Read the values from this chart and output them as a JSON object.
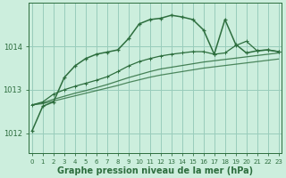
{
  "background_color": "#cceedd",
  "grid_color": "#99ccbb",
  "line_color": "#2d6e3e",
  "xlabel": "Graphe pression niveau de la mer (hPa)",
  "xlabel_fontsize": 7,
  "yticks": [
    1012,
    1013,
    1014
  ],
  "xticks": [
    0,
    1,
    2,
    3,
    4,
    5,
    6,
    7,
    8,
    9,
    10,
    11,
    12,
    13,
    14,
    15,
    16,
    17,
    18,
    19,
    20,
    21,
    22,
    23
  ],
  "ylim": [
    1011.55,
    1015.0
  ],
  "xlim": [
    -0.3,
    23.3
  ],
  "s1_x": [
    0,
    1,
    2,
    3,
    4,
    5,
    6,
    7,
    8,
    9,
    10,
    11,
    12,
    13,
    14,
    15,
    16,
    17,
    18,
    19,
    20,
    21,
    22,
    23
  ],
  "s1_y": [
    1012.05,
    1012.62,
    1012.72,
    1013.28,
    1013.55,
    1013.72,
    1013.82,
    1013.87,
    1013.92,
    1014.18,
    1014.52,
    1014.62,
    1014.65,
    1014.72,
    1014.68,
    1014.62,
    1014.38,
    1013.82,
    1014.62,
    1014.05,
    1013.85,
    1013.9,
    1013.92,
    1013.88
  ],
  "s2_x": [
    0,
    1,
    2,
    3,
    4,
    5,
    6,
    7,
    8,
    9,
    10,
    11,
    12,
    13,
    14,
    15,
    16,
    17,
    18,
    19,
    20,
    21,
    22,
    23
  ],
  "s2_y": [
    1012.65,
    1012.72,
    1012.9,
    1013.0,
    1013.08,
    1013.15,
    1013.22,
    1013.3,
    1013.42,
    1013.55,
    1013.65,
    1013.72,
    1013.78,
    1013.82,
    1013.85,
    1013.88,
    1013.88,
    1013.82,
    1013.85,
    1014.02,
    1014.12,
    1013.9,
    1013.92,
    1013.88
  ],
  "s3_x": [
    0,
    1,
    2,
    3,
    4,
    5,
    6,
    7,
    8,
    9,
    10,
    11,
    12,
    13,
    14,
    15,
    16,
    17,
    18,
    19,
    20,
    21,
    22,
    23
  ],
  "s3_y": [
    1012.65,
    1012.7,
    1012.78,
    1012.85,
    1012.92,
    1012.98,
    1013.05,
    1013.12,
    1013.2,
    1013.28,
    1013.35,
    1013.42,
    1013.48,
    1013.52,
    1013.56,
    1013.6,
    1013.64,
    1013.67,
    1013.7,
    1013.73,
    1013.76,
    1013.79,
    1013.82,
    1013.85
  ],
  "s4_x": [
    0,
    1,
    2,
    3,
    4,
    5,
    6,
    7,
    8,
    9,
    10,
    11,
    12,
    13,
    14,
    15,
    16,
    17,
    18,
    19,
    20,
    21,
    22,
    23
  ],
  "s4_y": [
    1012.65,
    1012.68,
    1012.74,
    1012.8,
    1012.86,
    1012.92,
    1012.98,
    1013.04,
    1013.1,
    1013.17,
    1013.23,
    1013.29,
    1013.34,
    1013.38,
    1013.42,
    1013.46,
    1013.5,
    1013.53,
    1013.56,
    1013.59,
    1013.62,
    1013.65,
    1013.68,
    1013.71
  ]
}
